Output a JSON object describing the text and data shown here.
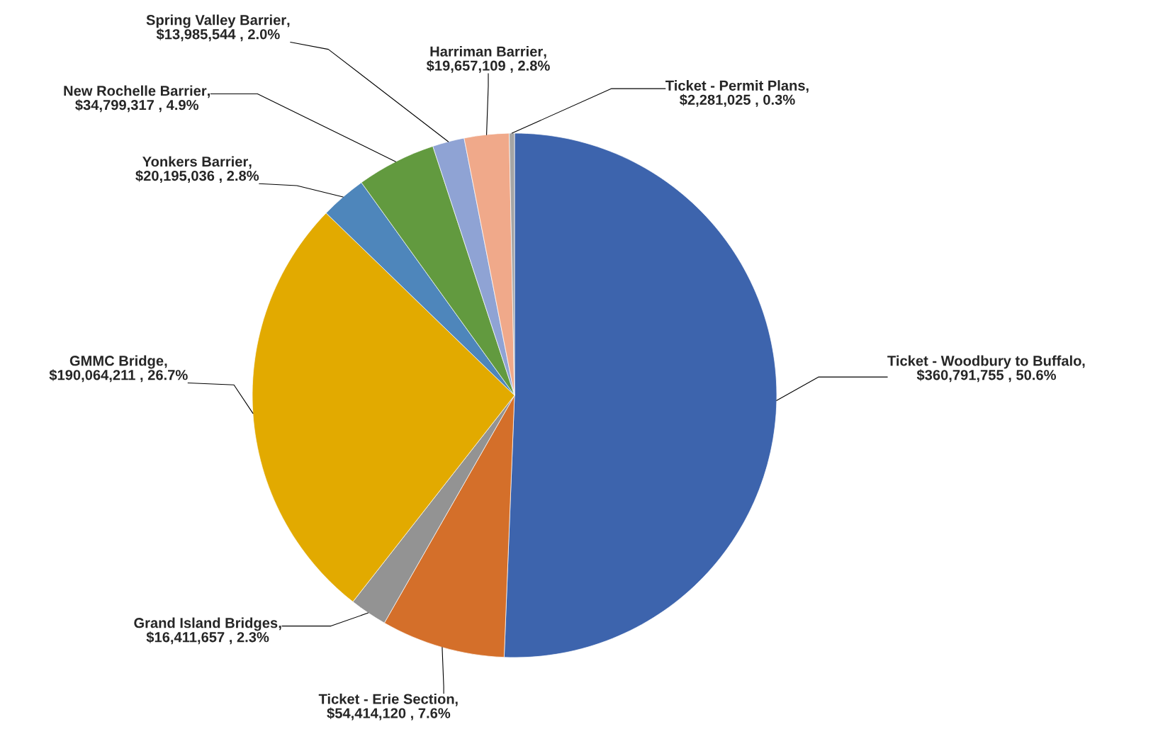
{
  "chart_data": {
    "type": "pie",
    "categories": [
      "Ticket - Woodbury to Buffalo",
      "Ticket - Erie Section",
      "Grand Island Bridges",
      "GMMC Bridge",
      "Yonkers Barrier",
      "New Rochelle Barrier",
      "Spring Valley Barrier",
      "Harriman Barrier",
      "Ticket - Permit Plans"
    ],
    "values": [
      360791755,
      54414120,
      16411657,
      190064211,
      20195036,
      34799317,
      13985544,
      19657109,
      2281025
    ],
    "annotations": [
      ","
    ],
    "colors": [
      "#3d64ad",
      "#d46f2a",
      "#939393",
      "#e2aa00",
      "#4e86bb",
      "#629a3f",
      "#8fa3d4",
      "#f0a98a",
      "#a5a5a5"
    ],
    "value_labels": [
      "$360,791,755 , 50.6%",
      "$54,414,120 , 7.6%",
      "$16,411,657 , 2.3%",
      "$190,064,211 , 26.7%",
      "$20,195,036 , 2.8%",
      "$34,799,317 , 4.9%",
      "$13,985,544 , 2.0%",
      "$19,657,109 , 2.8%",
      "$2,281,025 , 0.3%"
    ]
  }
}
